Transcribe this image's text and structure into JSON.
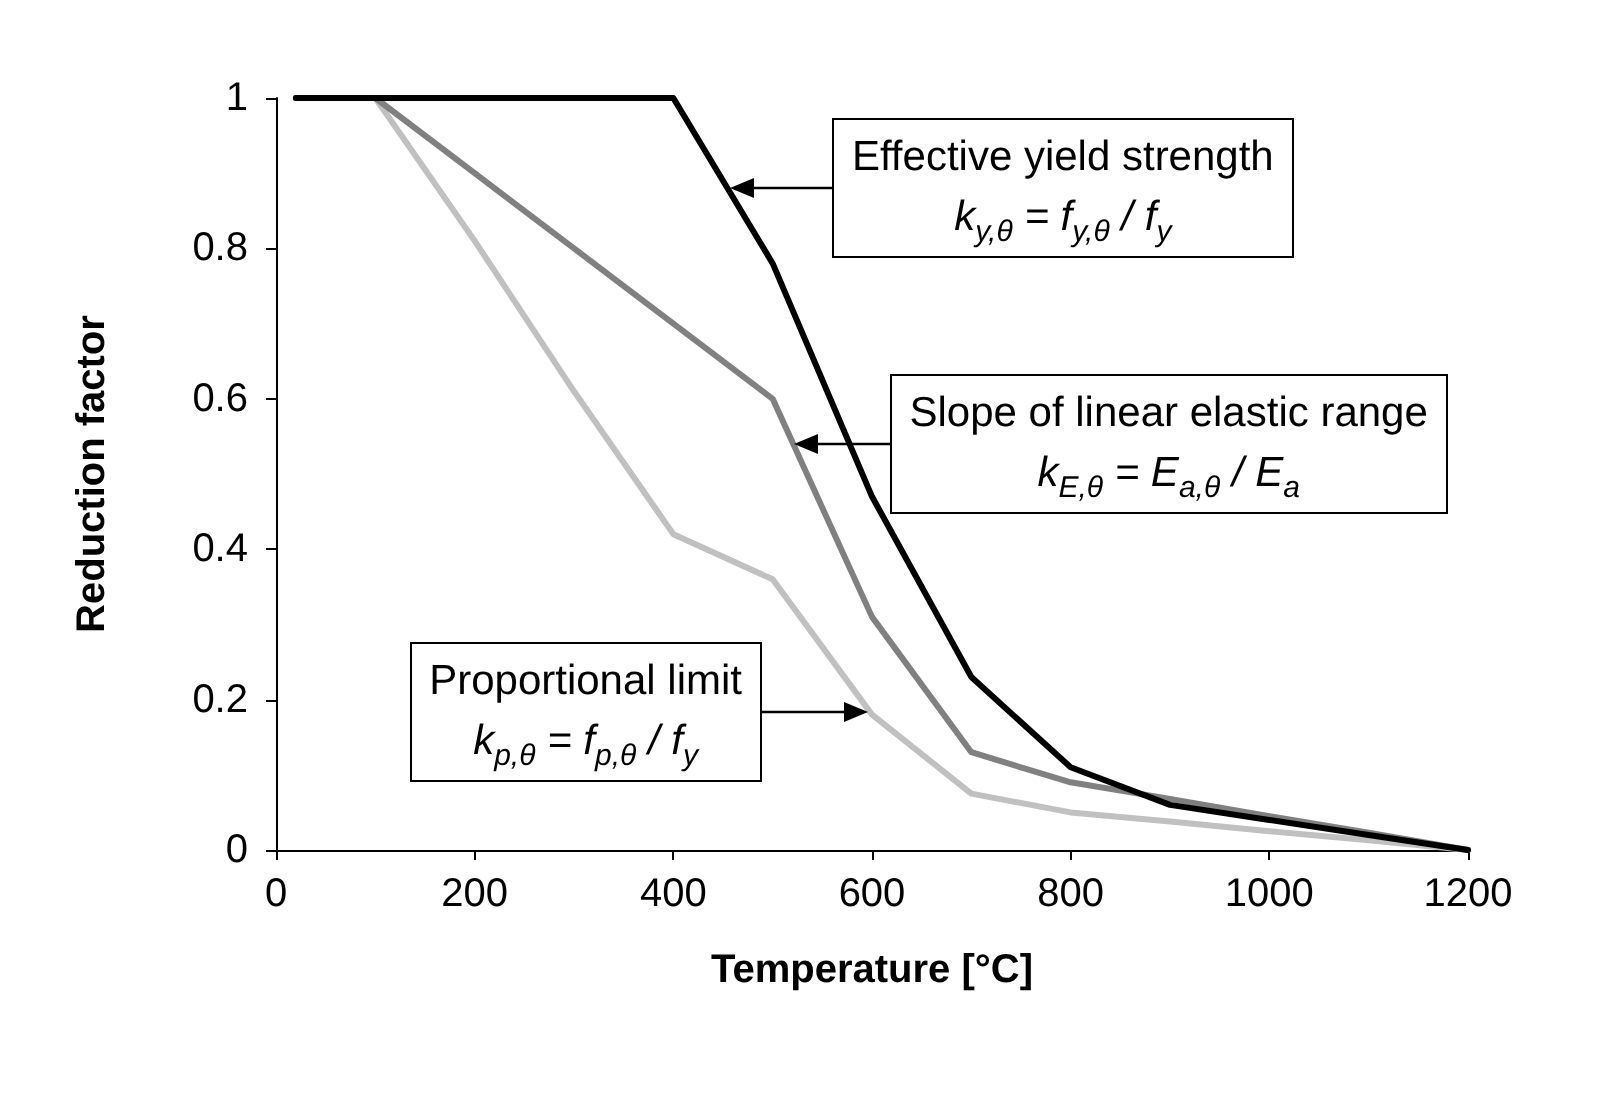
{
  "chart_data": {
    "type": "line",
    "xlabel": "Temperature [°C]",
    "ylabel": "Reduction factor",
    "x": [
      20,
      100,
      200,
      300,
      400,
      500,
      600,
      700,
      800,
      900,
      1000,
      1100,
      1200
    ],
    "series": [
      {
        "color": "#c0c0c0",
        "values": [
          1,
          1,
          0.81,
          0.61,
          0.42,
          0.36,
          0.18,
          0.075,
          0.05,
          0.038,
          0.025,
          0.013,
          0
        ]
      },
      {
        "color": "#808080",
        "values": [
          1,
          1,
          0.9,
          0.8,
          0.7,
          0.6,
          0.31,
          0.13,
          0.09,
          0.068,
          0.045,
          0.023,
          0
        ]
      },
      {
        "color": "#000000",
        "values": [
          1,
          1,
          1,
          1,
          1,
          0.78,
          0.47,
          0.23,
          0.11,
          0.06,
          0.04,
          0.02,
          0
        ]
      }
    ],
    "xlim": [
      0,
      1200
    ],
    "xticks": [
      0,
      200,
      400,
      600,
      800,
      1000,
      1200
    ],
    "ylim": [
      0,
      1
    ],
    "yticks": [
      0,
      0.2,
      0.4,
      0.6,
      0.8,
      1
    ],
    "grid": false,
    "marker": "none",
    "line_style": "solid",
    "annotations": [
      {
        "text": "Effective yield strength\nk$_{y,θ}$ = f$_{y,θ}$ / f$_{y}$",
        "x": 457,
        "y": 0.88
      },
      {
        "text": "Slope of linear elastic range\nk$_{E,θ}$ = E$_{a,θ}$ / E$_{a}$",
        "x": 521,
        "y": 0.54
      },
      "Proportional limit\nk$_{p,θ}$ = f$_{p,θ}$ / f$_{y}$"
    ]
  }
}
